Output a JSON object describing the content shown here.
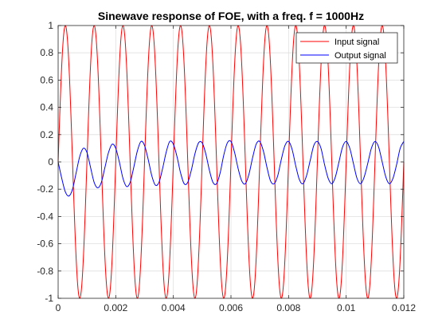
{
  "chart_data": {
    "type": "line",
    "title": "Sinewave response of FOE, with a freq. f = 1000Hz",
    "xlabel": "",
    "ylabel": "",
    "xlim": [
      0,
      0.012
    ],
    "ylim": [
      -1,
      1
    ],
    "x_ticks": [
      0,
      0.002,
      0.004,
      0.006,
      0.008,
      0.01,
      0.012
    ],
    "x_tick_labels": [
      "0",
      "0.002",
      "0.004",
      "0.006",
      "0.008",
      "0.01",
      "0.012"
    ],
    "y_ticks": [
      -1,
      -0.8,
      -0.6,
      -0.4,
      -0.2,
      0,
      0.2,
      0.4,
      0.6,
      0.8,
      1
    ],
    "y_tick_labels": [
      "-1",
      "-0.8",
      "-0.6",
      "-0.4",
      "-0.2",
      "0",
      "0.2",
      "0.4",
      "0.6",
      "0.8",
      "1"
    ],
    "grid": true,
    "legend_position": "top-right",
    "series": [
      {
        "name": "Input signal",
        "color": "#ff0000",
        "function": "sin(2*pi*1000*t)",
        "frequency_hz": 1000,
        "amplitude": 1
      },
      {
        "name": "Output signal",
        "color": "#0000ff",
        "frequency_hz": 1000,
        "points": [
          [
            0,
            0
          ],
          [
            0.000125,
            -0.12
          ],
          [
            0.00025,
            -0.22
          ],
          [
            0.000375,
            -0.25
          ],
          [
            0.0005,
            -0.2
          ],
          [
            0.000625,
            -0.08
          ],
          [
            0.00075,
            0.04
          ],
          [
            0.000875,
            0.1
          ],
          [
            0.001,
            0.07
          ],
          [
            0.001125,
            -0.04
          ],
          [
            0.00125,
            -0.15
          ],
          [
            0.001375,
            -0.19
          ],
          [
            0.0015,
            -0.15
          ],
          [
            0.001625,
            -0.04
          ],
          [
            0.00175,
            0.07
          ],
          [
            0.001875,
            0.13
          ],
          [
            0.002,
            0.1
          ],
          [
            0.002125,
            0.0
          ],
          [
            0.00225,
            -0.12
          ],
          [
            0.002375,
            -0.18
          ],
          [
            0.0025,
            -0.15
          ],
          [
            0.002625,
            -0.04
          ],
          [
            0.00275,
            0.08
          ],
          [
            0.002875,
            0.15
          ],
          [
            0.003,
            0.12
          ],
          [
            0.003125,
            0.02
          ],
          [
            0.00325,
            -0.1
          ],
          [
            0.003375,
            -0.17
          ],
          [
            0.0035,
            -0.15
          ],
          [
            0.003625,
            -0.05
          ],
          [
            0.00375,
            0.07
          ],
          [
            0.003875,
            0.15
          ],
          [
            0.004,
            0.13
          ],
          [
            0.004125,
            0.04
          ],
          [
            0.00425,
            -0.08
          ],
          [
            0.004375,
            -0.16
          ],
          [
            0.0045,
            -0.15
          ],
          [
            0.004625,
            -0.06
          ],
          [
            0.00475,
            0.06
          ],
          [
            0.004875,
            0.14
          ],
          [
            0.005,
            0.14
          ],
          [
            0.005125,
            0.06
          ],
          [
            0.00525,
            -0.06
          ],
          [
            0.005375,
            -0.15
          ],
          [
            0.0055,
            -0.16
          ],
          [
            0.005625,
            -0.08
          ],
          [
            0.00575,
            0.05
          ],
          [
            0.005875,
            0.14
          ],
          [
            0.006,
            0.15
          ],
          [
            0.006125,
            0.07
          ],
          [
            0.00625,
            -0.05
          ],
          [
            0.006375,
            -0.14
          ],
          [
            0.0065,
            -0.16
          ],
          [
            0.006625,
            -0.09
          ],
          [
            0.00675,
            0.03
          ],
          [
            0.006875,
            0.13
          ],
          [
            0.007,
            0.15
          ],
          [
            0.007125,
            0.08
          ],
          [
            0.00725,
            -0.04
          ],
          [
            0.007375,
            -0.14
          ],
          [
            0.0075,
            -0.16
          ],
          [
            0.007625,
            -0.1
          ],
          [
            0.00775,
            0.02
          ],
          [
            0.007875,
            0.12
          ],
          [
            0.008,
            0.15
          ],
          [
            0.008125,
            0.09
          ],
          [
            0.00825,
            -0.03
          ],
          [
            0.008375,
            -0.13
          ],
          [
            0.0085,
            -0.16
          ],
          [
            0.008625,
            -0.1
          ],
          [
            0.00875,
            0.01
          ],
          [
            0.008875,
            0.12
          ],
          [
            0.009,
            0.15
          ],
          [
            0.009125,
            0.1
          ],
          [
            0.00925,
            -0.02
          ],
          [
            0.009375,
            -0.12
          ],
          [
            0.0095,
            -0.16
          ],
          [
            0.009625,
            -0.11
          ],
          [
            0.00975,
            0.0
          ],
          [
            0.009875,
            0.11
          ],
          [
            0.01,
            0.15
          ],
          [
            0.010125,
            0.1
          ],
          [
            0.01025,
            -0.01
          ],
          [
            0.010375,
            -0.12
          ],
          [
            0.0105,
            -0.16
          ],
          [
            0.010625,
            -0.11
          ],
          [
            0.01075,
            -0.01
          ],
          [
            0.010875,
            0.1
          ],
          [
            0.011,
            0.15
          ],
          [
            0.011125,
            0.11
          ],
          [
            0.01125,
            0.0
          ],
          [
            0.011375,
            -0.11
          ],
          [
            0.0115,
            -0.16
          ],
          [
            0.011625,
            -0.12
          ],
          [
            0.01175,
            -0.02
          ],
          [
            0.011875,
            0.1
          ],
          [
            0.012,
            0.15
          ]
        ]
      }
    ]
  }
}
